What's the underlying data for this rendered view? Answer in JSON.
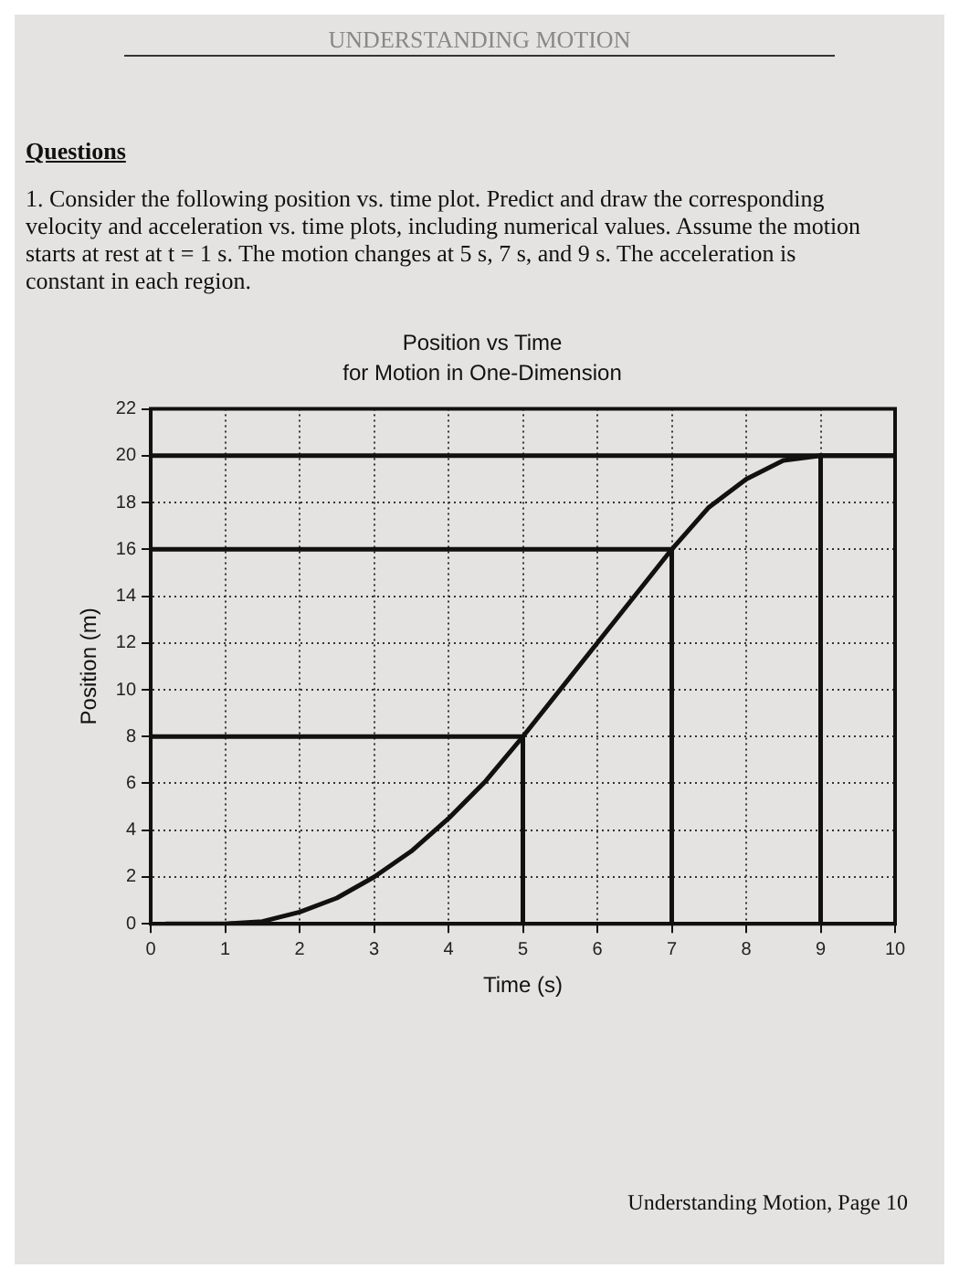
{
  "chart_data": {
    "type": "line",
    "title": "Position vs Time",
    "subtitle": "for Motion in One-Dimension",
    "xlabel": "Time (s)",
    "ylabel": "Position (m)",
    "annotations": [
      "UNDERSTANDING MOTION",
      "Questions",
      "1. Consider the following position vs. time plot. Predict and draw the corresponding velocity and acceleration vs. time plots, including numerical values. Assume the motion starts at rest at t = 1 s. The motion changes at 5 s, 7 s, and 9 s. The acceleration is constant in each region.",
      "Understanding Motion, Page 10"
    ],
    "x": [
      0.2,
      1,
      1.5,
      2,
      2.5,
      3,
      3.5,
      4,
      4.5,
      5,
      6,
      7,
      7.5,
      8,
      8.5,
      9,
      10
    ],
    "series": [
      {
        "color": "#111111",
        "values": [
          0,
          0,
          0.1,
          0.5,
          1.1,
          2,
          3.1,
          4.5,
          6.1,
          8,
          12,
          16,
          17.8,
          19,
          19.8,
          20,
          20
        ]
      },
      {
        "color": "#111111",
        "x": [
          0,
          5,
          5
        ],
        "values": [
          8,
          8,
          0
        ]
      },
      {
        "color": "#111111",
        "x": [
          0,
          7,
          7
        ],
        "values": [
          16,
          16,
          0
        ]
      },
      {
        "color": "#111111",
        "x": [
          0,
          10
        ],
        "values": [
          20,
          20
        ]
      },
      {
        "color": "#111111",
        "x": [
          9,
          9
        ],
        "values": [
          20,
          0
        ]
      }
    ],
    "xlim": [
      0,
      10
    ],
    "xticks": [
      0,
      1,
      2,
      3,
      4,
      5,
      6,
      7,
      8,
      9,
      10
    ],
    "ylim": [
      0,
      22
    ],
    "yticks": [
      0,
      2,
      4,
      6,
      8,
      10,
      12,
      14,
      16,
      18,
      20,
      22
    ],
    "grid": true,
    "legend": false,
    "marker": "none",
    "line_style": "solid"
  }
}
